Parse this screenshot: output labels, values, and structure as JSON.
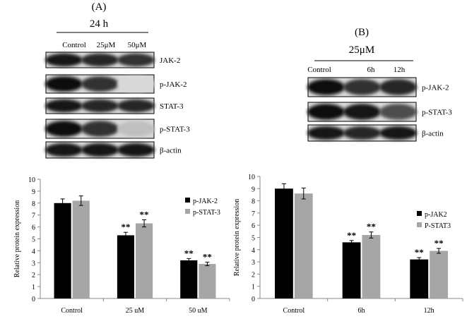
{
  "blots": [
    {
      "label": "(A)",
      "condition": "24 h",
      "lanes": [
        "Control",
        "25μM",
        "50μM"
      ],
      "proteins": [
        "JAK-2",
        "p-JAK-2",
        "STAT-3",
        "p-STAT-3",
        "β-actin"
      ]
    },
    {
      "label": "(B)",
      "condition": "25μM",
      "lanes": [
        "Control",
        "6h",
        "12h"
      ],
      "proteins": [
        "p-JAK-2",
        "p-STAT-3",
        "β-actin"
      ]
    }
  ],
  "chart_data": [
    {
      "type": "bar",
      "ylabel": "Relative protein expression",
      "categories": [
        "Control",
        "25 uM",
        "50 uM"
      ],
      "series": [
        {
          "name": "p-JAK-2",
          "color": "#000000",
          "values": [
            8.0,
            5.3,
            3.2
          ],
          "errors": [
            0.35,
            0.25,
            0.15
          ],
          "annotations": [
            null,
            "**",
            "**"
          ]
        },
        {
          "name": "p-STAT-3",
          "color": "#a6a6a6",
          "values": [
            8.2,
            6.3,
            2.9
          ],
          "errors": [
            0.4,
            0.3,
            0.15
          ],
          "annotations": [
            null,
            "**",
            "**"
          ]
        }
      ],
      "ylim": [
        0,
        10
      ],
      "yticks": [
        0,
        1,
        2,
        3,
        4,
        5,
        6,
        7,
        8,
        9,
        10
      ],
      "legend": "upper right"
    },
    {
      "type": "bar",
      "ylabel": "Relative protein expression",
      "categories": [
        "Control",
        "6h",
        "12h"
      ],
      "series": [
        {
          "name": "p-JAK2",
          "color": "#000000",
          "values": [
            9.0,
            4.6,
            3.2
          ],
          "errors": [
            0.4,
            0.15,
            0.15
          ],
          "annotations": [
            null,
            "**",
            "**"
          ]
        },
        {
          "name": "P-STAT3",
          "color": "#a6a6a6",
          "values": [
            8.6,
            5.2,
            3.9
          ],
          "errors": [
            0.45,
            0.25,
            0.2
          ],
          "annotations": [
            null,
            "**",
            "**"
          ]
        }
      ],
      "ylim": [
        0,
        10
      ],
      "yticks": [
        0,
        1,
        2,
        3,
        4,
        5,
        6,
        7,
        8,
        9,
        10
      ],
      "legend": "upper right"
    }
  ]
}
